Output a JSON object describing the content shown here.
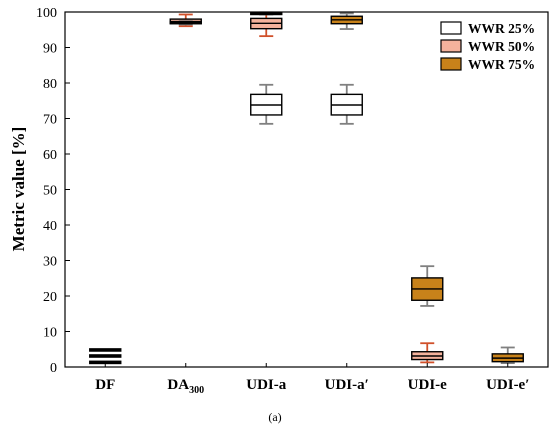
{
  "chart_data": {
    "type": "box",
    "ylabel": "Metric value [%]",
    "ylim": [
      0,
      100
    ],
    "yticks": [
      0,
      10,
      20,
      30,
      40,
      50,
      60,
      70,
      80,
      90,
      100
    ],
    "categories": [
      {
        "main": "DF",
        "sub": ""
      },
      {
        "main": "DA",
        "sub": "300"
      },
      {
        "main": "UDI-a",
        "sub": ""
      },
      {
        "main": "UDI-a′",
        "sub": ""
      },
      {
        "main": "UDI-e",
        "sub": ""
      },
      {
        "main": "UDI-e′",
        "sub": ""
      }
    ],
    "legend_position": "top-right",
    "caption": "(a)",
    "series": [
      {
        "name": "WWR 25%",
        "fill": "#ffffff",
        "stroke": "#000000",
        "whisker": "#808080",
        "boxes": [
          {
            "min": 1.3,
            "q1": 1.3,
            "median": 1.3,
            "q3": 1.3,
            "max": 1.3
          },
          null,
          {
            "min": 68.5,
            "q1": 71,
            "median": 73.8,
            "q3": 76.8,
            "max": 79.5
          },
          {
            "min": 68.5,
            "q1": 71,
            "median": 73.8,
            "q3": 76.8,
            "max": 79.5
          },
          null,
          null
        ]
      },
      {
        "name": "WWR 50%",
        "fill": "#f4b29c",
        "stroke": "#000000",
        "whisker": "#d0502a",
        "boxes": [
          {
            "min": 3.1,
            "q1": 3.1,
            "median": 3.1,
            "q3": 3.1,
            "max": 3.1
          },
          {
            "min": 96,
            "q1": 96.8,
            "median": 97.2,
            "q3": 98,
            "max": 99.3
          },
          {
            "min": 93.2,
            "q1": 95.3,
            "median": 96.8,
            "q3": 98.2,
            "max": 99.6
          },
          null,
          {
            "min": 1.3,
            "q1": 2.1,
            "median": 3.1,
            "q3": 4.3,
            "max": 6.7
          },
          null
        ]
      },
      {
        "name": "WWR 75%",
        "fill": "#c8821a",
        "stroke": "#000000",
        "whisker": "#808080",
        "boxes": [
          {
            "min": 4.8,
            "q1": 4.8,
            "median": 4.8,
            "q3": 4.8,
            "max": 4.8
          },
          {
            "min": 96.5,
            "q1": 96.8,
            "median": 97,
            "q3": 97.2,
            "max": 97.4
          },
          {
            "min": 99.3,
            "q1": 99.4,
            "median": 99.6,
            "q3": 99.8,
            "max": 99.9
          },
          {
            "min": 95.2,
            "q1": 96.7,
            "median": 97.8,
            "q3": 98.8,
            "max": 99.6
          },
          {
            "min": 17.2,
            "q1": 18.8,
            "median": 22,
            "q3": 25.1,
            "max": 28.4
          },
          {
            "min": 1.1,
            "q1": 1.5,
            "median": 2.5,
            "q3": 3.7,
            "max": 5.5
          }
        ]
      }
    ]
  },
  "uddi_extra": {
    "series_offsets_note": ""
  }
}
